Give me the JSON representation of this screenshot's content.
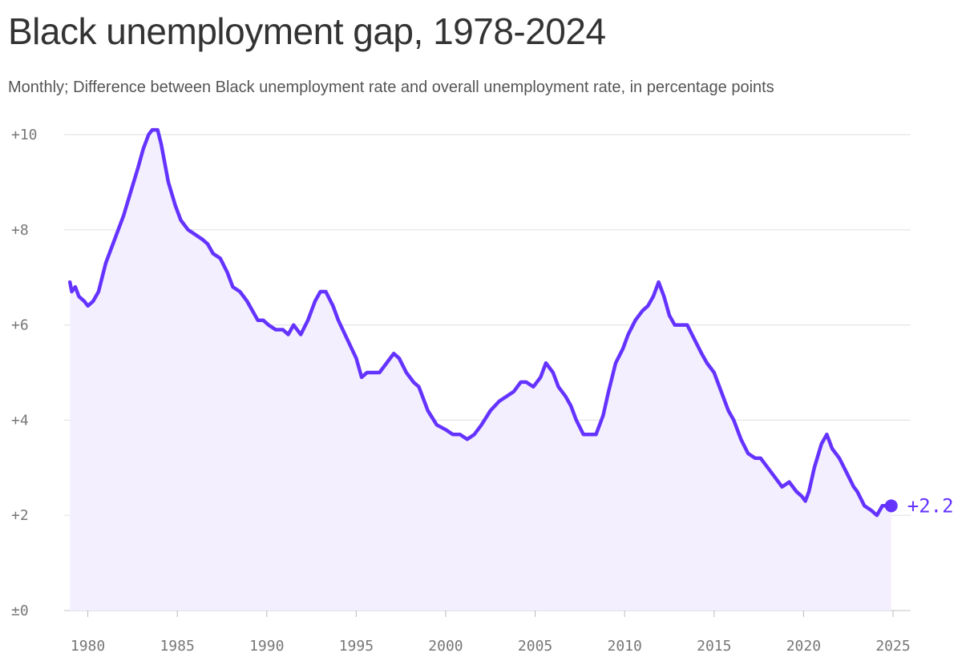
{
  "chart_data": {
    "type": "area",
    "title": "Black unemployment gap, 1978-2024",
    "subtitle": "Monthly; Difference between Black unemployment rate and overall unemployment rate, in percentage points",
    "xlim": [
      1978.9,
      2025.0
    ],
    "ylim": [
      0,
      10
    ],
    "x_ticks": [
      1980,
      1985,
      1990,
      1995,
      2000,
      2005,
      2010,
      2015,
      2020,
      2025
    ],
    "y_ticks": [
      {
        "value": 0,
        "label": "±0"
      },
      {
        "value": 2,
        "label": "+2"
      },
      {
        "value": 4,
        "label": "+4"
      },
      {
        "value": 6,
        "label": "+6"
      },
      {
        "value": 8,
        "label": "+8"
      },
      {
        "value": 10,
        "label": "+10"
      }
    ],
    "grid": true,
    "colors": {
      "line": "#6533ff",
      "fill": "#f3efff",
      "grid": "#e4e4e4",
      "text": "#777777"
    },
    "end_label": "+2.2",
    "series": [
      {
        "x": [
          1979.0,
          1979.1,
          1979.3,
          1979.5,
          1979.8,
          1980.0,
          1980.3,
          1980.6,
          1981.0,
          1981.3,
          1981.7,
          1982.0,
          1982.4,
          1982.8,
          1983.1,
          1983.4,
          1983.6,
          1983.9,
          1984.1,
          1984.5,
          1984.9,
          1985.2,
          1985.6,
          1986.0,
          1986.4,
          1986.7,
          1987.0,
          1987.4,
          1987.8,
          1988.1,
          1988.5,
          1988.9,
          1989.2,
          1989.5,
          1989.8,
          1990.1,
          1990.5,
          1990.9,
          1991.2,
          1991.5,
          1991.9,
          1992.3,
          1992.7,
          1993.0,
          1993.3,
          1993.7,
          1994.0,
          1994.5,
          1995.0,
          1995.3,
          1995.6,
          1996.0,
          1996.3,
          1996.7,
          1997.1,
          1997.4,
          1997.8,
          1998.2,
          1998.5,
          1999.0,
          1999.5,
          2000.0,
          2000.4,
          2000.8,
          2001.2,
          2001.6,
          2002.0,
          2002.5,
          2003.0,
          2003.4,
          2003.8,
          2004.2,
          2004.5,
          2004.9,
          2005.3,
          2005.6,
          2006.0,
          2006.3,
          2006.7,
          2007.0,
          2007.3,
          2007.7,
          2008.0,
          2008.4,
          2008.8,
          2009.1,
          2009.5,
          2009.9,
          2010.2,
          2010.6,
          2011.0,
          2011.3,
          2011.6,
          2011.9,
          2012.2,
          2012.5,
          2012.8,
          2013.1,
          2013.5,
          2013.9,
          2014.3,
          2014.6,
          2015.0,
          2015.4,
          2015.8,
          2016.1,
          2016.5,
          2016.9,
          2017.3,
          2017.6,
          2018.0,
          2018.4,
          2018.8,
          2019.2,
          2019.6,
          2019.9,
          2020.1,
          2020.3,
          2020.6,
          2021.0,
          2021.3,
          2021.6,
          2022.0,
          2022.4,
          2022.8,
          2023.0,
          2023.4,
          2023.8,
          2024.1,
          2024.4,
          2024.7,
          2024.9
        ],
        "values": [
          6.9,
          6.7,
          6.8,
          6.6,
          6.5,
          6.4,
          6.5,
          6.7,
          7.3,
          7.6,
          8.0,
          8.3,
          8.8,
          9.3,
          9.7,
          10.0,
          10.1,
          10.1,
          9.8,
          9.0,
          8.5,
          8.2,
          8.0,
          7.9,
          7.8,
          7.7,
          7.5,
          7.4,
          7.1,
          6.8,
          6.7,
          6.5,
          6.3,
          6.1,
          6.1,
          6.0,
          5.9,
          5.9,
          5.8,
          6.0,
          5.8,
          6.1,
          6.5,
          6.7,
          6.7,
          6.4,
          6.1,
          5.7,
          5.3,
          4.9,
          5.0,
          5.0,
          5.0,
          5.2,
          5.4,
          5.3,
          5.0,
          4.8,
          4.7,
          4.2,
          3.9,
          3.8,
          3.7,
          3.7,
          3.6,
          3.7,
          3.9,
          4.2,
          4.4,
          4.5,
          4.6,
          4.8,
          4.8,
          4.7,
          4.9,
          5.2,
          5.0,
          4.7,
          4.5,
          4.3,
          4.0,
          3.7,
          3.7,
          3.7,
          4.1,
          4.6,
          5.2,
          5.5,
          5.8,
          6.1,
          6.3,
          6.4,
          6.6,
          6.9,
          6.6,
          6.2,
          6.0,
          6.0,
          6.0,
          5.7,
          5.4,
          5.2,
          5.0,
          4.6,
          4.2,
          4.0,
          3.6,
          3.3,
          3.2,
          3.2,
          3.0,
          2.8,
          2.6,
          2.7,
          2.5,
          2.4,
          2.3,
          2.5,
          3.0,
          3.5,
          3.7,
          3.4,
          3.2,
          2.9,
          2.6,
          2.5,
          2.2,
          2.1,
          2.0,
          2.2,
          2.2,
          2.2
        ]
      }
    ]
  }
}
